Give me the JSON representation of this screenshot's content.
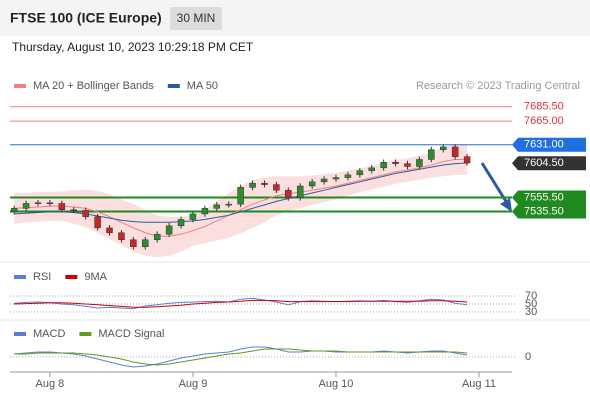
{
  "header": {
    "title": "FTSE 100 (ICE Europe)",
    "interval": "30 MIN",
    "datetime": "Thursday, August 10, 2023 10:29:18 PM CET"
  },
  "chart_data": [
    {
      "type": "candlestick",
      "watermark": "Research © 2023 Trading Central",
      "xlim": [
        -6.7,
        77.2
      ],
      "xticks": [
        {
          "value": 0,
          "label": "Aug 8"
        },
        {
          "value": 24,
          "label": "Aug 9"
        },
        {
          "value": 48,
          "label": "Aug 10"
        },
        {
          "value": 72,
          "label": "Aug 11"
        }
      ],
      "ylim": [
        7466,
        7731
      ],
      "up_color": "#2e8b2e",
      "down_color": "#c62828",
      "x": [
        -6,
        -4,
        -2,
        0,
        2,
        4,
        6,
        8,
        10,
        12,
        14,
        16,
        18,
        20,
        22,
        24,
        26,
        28,
        30,
        32,
        34,
        36,
        38,
        40,
        42,
        44,
        46,
        48,
        50,
        52,
        54,
        56,
        58,
        60,
        62,
        64,
        66,
        68,
        70
      ],
      "open": [
        7535,
        7540,
        7547,
        7548,
        7547,
        7538,
        7537,
        7528,
        7512,
        7505,
        7495,
        7485,
        7495,
        7503,
        7515,
        7524,
        7532,
        7540,
        7545,
        7546,
        7570,
        7576,
        7574,
        7566,
        7555,
        7572,
        7578,
        7582,
        7584,
        7588,
        7594,
        7598,
        7606,
        7604,
        7600,
        7610,
        7624,
        7628,
        7614
      ],
      "high": [
        7544,
        7551,
        7552,
        7552,
        7551,
        7542,
        7541,
        7532,
        7516,
        7509,
        7499,
        7499,
        7507,
        7519,
        7528,
        7536,
        7544,
        7549,
        7550,
        7574,
        7580,
        7580,
        7578,
        7570,
        7576,
        7582,
        7586,
        7588,
        7592,
        7598,
        7602,
        7610,
        7610,
        7608,
        7614,
        7628,
        7632,
        7632,
        7618
      ],
      "low": [
        7531,
        7536,
        7543,
        7543,
        7534,
        7533,
        7524,
        7508,
        7501,
        7491,
        7481,
        7481,
        7491,
        7499,
        7511,
        7520,
        7528,
        7536,
        7541,
        7542,
        7566,
        7570,
        7562,
        7551,
        7551,
        7568,
        7574,
        7578,
        7580,
        7584,
        7590,
        7594,
        7600,
        7596,
        7596,
        7606,
        7620,
        7610,
        7601
      ],
      "close": [
        7540,
        7547,
        7548,
        7547,
        7538,
        7537,
        7528,
        7512,
        7505,
        7495,
        7485,
        7495,
        7503,
        7515,
        7524,
        7532,
        7540,
        7545,
        7546,
        7570,
        7576,
        7574,
        7566,
        7555,
        7572,
        7578,
        7582,
        7584,
        7588,
        7594,
        7598,
        7606,
        7604,
        7600,
        7610,
        7624,
        7628,
        7614,
        7605
      ],
      "series": [
        {
          "name": "MA 20 + Bollinger Bands",
          "color": "#f08080",
          "values": [
            7540,
            7541,
            7542,
            7543,
            7543,
            7542,
            7540,
            7535,
            7528,
            7520,
            7512,
            7505,
            7500,
            7500,
            7503,
            7508,
            7514,
            7522,
            7530,
            7538,
            7546,
            7552,
            7558,
            7561,
            7563,
            7566,
            7569,
            7572,
            7576,
            7580,
            7584,
            7588,
            7592,
            7595,
            7598,
            7602,
            7607,
            7610,
            7610
          ],
          "upper": [
            7562,
            7562,
            7563,
            7564,
            7564,
            7566,
            7567,
            7565,
            7560,
            7553,
            7546,
            7538,
            7530,
            7528,
            7528,
            7530,
            7538,
            7550,
            7562,
            7572,
            7580,
            7584,
            7586,
            7586,
            7586,
            7587,
            7589,
            7591,
            7594,
            7597,
            7601,
            7605,
            7609,
            7612,
            7615,
            7620,
            7628,
            7632,
            7632
          ],
          "lower": [
            7518,
            7520,
            7521,
            7522,
            7522,
            7518,
            7513,
            7505,
            7496,
            7487,
            7478,
            7472,
            7470,
            7472,
            7478,
            7486,
            7490,
            7494,
            7498,
            7504,
            7512,
            7520,
            7530,
            7536,
            7540,
            7545,
            7549,
            7553,
            7558,
            7563,
            7567,
            7571,
            7575,
            7578,
            7581,
            7584,
            7586,
            7588,
            7588
          ]
        },
        {
          "name": "MA 50",
          "color": "#2c5aa0",
          "values": [
            7532,
            7533,
            7534,
            7535,
            7535,
            7534,
            7532,
            7529,
            7526,
            7523,
            7521,
            7520,
            7520,
            7520,
            7521,
            7522,
            7524,
            7527,
            7530,
            7535,
            7540,
            7545,
            7550,
            7554,
            7558,
            7562,
            7566,
            7570,
            7574,
            7578,
            7582,
            7586,
            7590,
            7593,
            7596,
            7599,
            7602,
            7604,
            7605
          ]
        }
      ],
      "levels": [
        {
          "value": 7685.5,
          "label": "7685.50",
          "color": "#f08080",
          "box": false
        },
        {
          "value": 7665,
          "label": "7665.00",
          "color": "#f08080",
          "box": false
        },
        {
          "value": 7631,
          "label": "7631.00",
          "color": "#1f6fe0",
          "box": true
        },
        {
          "value": 7604.5,
          "label": "7604.50",
          "color": "#333333",
          "box": true
        },
        {
          "value": 7555.5,
          "label": "7555.50",
          "color": "#1f8a1f",
          "box": true
        },
        {
          "value": 7535.5,
          "label": "7535.50",
          "color": "#1f8a1f",
          "box": true
        }
      ]
    },
    {
      "type": "line",
      "ylim": [
        15,
        95
      ],
      "yticks": [
        70,
        50,
        30
      ],
      "series": [
        {
          "name": "RSI",
          "color": "#5b7fd6",
          "values": [
            52,
            54,
            55,
            53,
            50,
            48,
            44,
            40,
            42,
            40,
            38,
            45,
            48,
            52,
            54,
            55,
            56,
            57,
            55,
            62,
            64,
            60,
            55,
            48,
            56,
            58,
            57,
            56,
            57,
            58,
            57,
            59,
            56,
            54,
            58,
            62,
            60,
            52,
            48
          ]
        },
        {
          "name": "9MA",
          "color": "#d00000",
          "values": [
            50,
            51,
            52,
            53,
            53,
            52,
            50,
            48,
            46,
            44,
            42,
            42,
            43,
            45,
            47,
            50,
            52,
            54,
            55,
            57,
            59,
            59,
            58,
            56,
            56,
            56,
            56,
            56,
            56,
            57,
            57,
            57,
            57,
            57,
            57,
            58,
            58,
            57,
            55
          ]
        }
      ]
    },
    {
      "type": "line",
      "ylim": [
        -20,
        20
      ],
      "yticks": [
        0
      ],
      "series": [
        {
          "name": "MACD",
          "color": "#5b7fd6",
          "values": [
            3,
            4,
            5,
            5,
            4,
            3,
            1,
            -2,
            -5,
            -8,
            -10,
            -9,
            -7,
            -4,
            -1,
            1,
            3,
            4,
            5,
            8,
            10,
            10,
            8,
            5,
            5,
            6,
            6,
            5,
            5,
            5,
            5,
            6,
            5,
            4,
            5,
            6,
            6,
            4,
            2
          ]
        },
        {
          "name": "MACD Signal",
          "color": "#5a9e1a",
          "values": [
            3,
            3,
            4,
            4,
            4,
            4,
            3,
            2,
            0,
            -2,
            -5,
            -7,
            -8,
            -7,
            -5,
            -3,
            -1,
            1,
            3,
            4,
            6,
            8,
            8,
            8,
            7,
            6,
            6,
            6,
            5,
            5,
            5,
            5,
            5,
            5,
            5,
            5,
            5,
            5,
            4
          ]
        }
      ]
    }
  ]
}
